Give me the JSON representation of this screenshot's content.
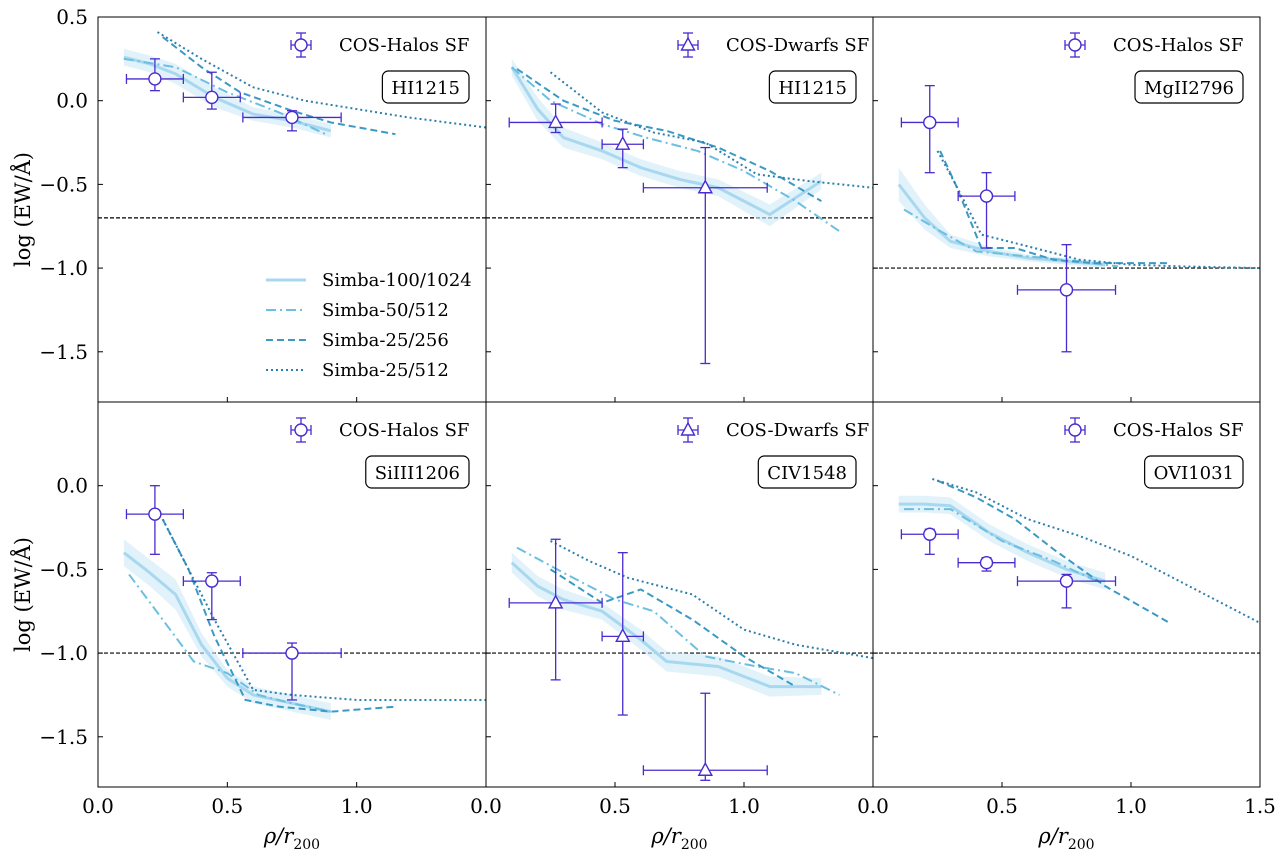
{
  "colors": {
    "simba100": "#a8d8f0",
    "simba50": "#6cbfe0",
    "simba25_256": "#3b9ac4",
    "simba25_512": "#2b7fae",
    "band": "#cfe9f7",
    "obs": "#4a2bd0",
    "threshold": "#000000"
  },
  "chart_data": {
    "type": "line",
    "title": "",
    "xlabel": "ρ/r",
    "xlabel_sub": "200",
    "ylabel": "log (EW/Å)",
    "xlim": [
      0.0,
      1.5
    ],
    "ylim": [
      -1.8,
      0.5
    ],
    "grid": false,
    "yticks": [
      0.5,
      0.0,
      -0.5,
      -1.0,
      -1.5
    ],
    "ytick_labels_top": [
      "0.5",
      "0.0",
      "−0.5",
      "−1.0",
      "−1.5"
    ],
    "ytick_labels_bottom": [
      "0.0",
      "−0.5",
      "−1.0",
      "−1.5"
    ],
    "xticks": [
      0.0,
      0.5,
      1.0
    ],
    "xtick_labels": [
      "0.0",
      "0.5",
      "1.0"
    ],
    "xtick_last_label": "1.5",
    "legend": {
      "location": "lower-right of top-left panel",
      "entries": [
        "Simba-100/1024",
        "Simba-50/512",
        "Simba-25/256",
        "Simba-25/512"
      ]
    },
    "panels": [
      {
        "ion": "HI1215",
        "obs_label": "COS-Halos SF",
        "marker": "circle",
        "threshold": -0.7,
        "series": [
          {
            "name": "Simba-100/1024",
            "x": [
              0.1,
              0.2,
              0.3,
              0.45,
              0.6,
              0.75,
              0.9
            ],
            "y": [
              0.26,
              0.22,
              0.16,
              0.02,
              -0.08,
              -0.12,
              -0.18
            ],
            "band_lo": [
              0.21,
              0.17,
              0.1,
              -0.04,
              -0.12,
              -0.16,
              -0.22
            ],
            "band_hi": [
              0.31,
              0.27,
              0.22,
              0.08,
              -0.04,
              -0.08,
              -0.14
            ]
          },
          {
            "name": "Simba-50/512",
            "x": [
              0.1,
              0.3,
              0.5,
              0.7,
              0.88
            ],
            "y": [
              0.25,
              0.2,
              0.05,
              -0.07,
              -0.2
            ]
          },
          {
            "name": "Simba-25/256",
            "x": [
              0.25,
              0.4,
              0.55,
              0.75,
              0.9,
              1.15
            ],
            "y": [
              0.38,
              0.2,
              0.05,
              -0.06,
              -0.13,
              -0.2
            ]
          },
          {
            "name": "Simba-25/512",
            "x": [
              0.23,
              0.4,
              0.6,
              0.8,
              1.0,
              1.2,
              1.5
            ],
            "y": [
              0.41,
              0.25,
              0.08,
              0.0,
              -0.05,
              -0.1,
              -0.16
            ]
          }
        ],
        "obs": [
          {
            "x": 0.22,
            "xerr": 0.11,
            "y": 0.13,
            "ylo": 0.06,
            "yhi": 0.25
          },
          {
            "x": 0.44,
            "xerr": 0.11,
            "y": 0.02,
            "ylo": -0.05,
            "yhi": 0.17
          },
          {
            "x": 0.75,
            "xerr": 0.19,
            "y": -0.1,
            "ylo": -0.18,
            "yhi": -0.06
          }
        ]
      },
      {
        "ion": "HI1215",
        "obs_label": "COS-Dwarfs SF",
        "marker": "triangle",
        "threshold": -0.7,
        "series": [
          {
            "name": "Simba-100/1024",
            "x": [
              0.1,
              0.2,
              0.3,
              0.45,
              0.6,
              0.75,
              0.9,
              1.1,
              1.3
            ],
            "y": [
              0.2,
              -0.05,
              -0.22,
              -0.3,
              -0.4,
              -0.47,
              -0.52,
              -0.68,
              -0.48
            ],
            "band_lo": [
              0.15,
              -0.12,
              -0.28,
              -0.35,
              -0.45,
              -0.52,
              -0.57,
              -0.75,
              -0.53
            ],
            "band_hi": [
              0.25,
              0.02,
              -0.16,
              -0.25,
              -0.35,
              -0.42,
              -0.47,
              -0.62,
              -0.43
            ]
          },
          {
            "name": "Simba-50/512",
            "x": [
              0.1,
              0.25,
              0.45,
              0.62,
              0.82,
              1.0,
              1.2,
              1.37
            ],
            "y": [
              0.2,
              0.0,
              -0.14,
              -0.22,
              -0.3,
              -0.42,
              -0.6,
              -0.78
            ]
          },
          {
            "name": "Simba-25/256",
            "x": [
              0.12,
              0.3,
              0.5,
              0.7,
              0.9,
              1.1,
              1.3
            ],
            "y": [
              0.19,
              0.0,
              -0.12,
              -0.18,
              -0.28,
              -0.42,
              -0.6
            ]
          },
          {
            "name": "Simba-25/512",
            "x": [
              0.25,
              0.45,
              0.65,
              0.85,
              1.05,
              1.25,
              1.5
            ],
            "y": [
              0.17,
              -0.07,
              -0.19,
              -0.25,
              -0.44,
              -0.48,
              -0.52
            ]
          }
        ],
        "obs": [
          {
            "x": 0.27,
            "xerr": 0.18,
            "y": -0.13,
            "ylo": -0.19,
            "yhi": -0.02
          },
          {
            "x": 0.53,
            "xerr": 0.08,
            "y": -0.26,
            "ylo": -0.4,
            "yhi": -0.17
          },
          {
            "x": 0.85,
            "xerr": 0.24,
            "y": -0.52,
            "ylo": -1.57,
            "yhi": -0.28
          }
        ]
      },
      {
        "ion": "MgII2796",
        "obs_label": "COS-Halos SF",
        "marker": "circle",
        "threshold": -1.0,
        "series": [
          {
            "name": "Simba-100/1024",
            "x": [
              0.1,
              0.2,
              0.3,
              0.45,
              0.6,
              0.75,
              0.9
            ],
            "y": [
              -0.5,
              -0.7,
              -0.84,
              -0.9,
              -0.94,
              -0.96,
              -0.98
            ],
            "band_lo": [
              -0.6,
              -0.77,
              -0.88,
              -0.93,
              -0.96,
              -0.98,
              -1.0
            ],
            "band_hi": [
              -0.4,
              -0.62,
              -0.8,
              -0.87,
              -0.92,
              -0.94,
              -0.96
            ]
          },
          {
            "name": "Simba-50/512",
            "x": [
              0.12,
              0.25,
              0.4,
              0.6,
              0.8,
              0.95
            ],
            "y": [
              -0.65,
              -0.77,
              -0.9,
              -0.93,
              -0.96,
              -0.99
            ]
          },
          {
            "name": "Simba-25/256",
            "x": [
              0.26,
              0.32,
              0.42,
              0.55,
              0.7,
              0.85,
              1.0,
              1.15
            ],
            "y": [
              -0.3,
              -0.5,
              -0.88,
              -0.88,
              -0.95,
              -0.97,
              -0.97,
              -0.97
            ]
          },
          {
            "name": "Simba-25/512",
            "x": [
              0.25,
              0.32,
              0.42,
              0.6,
              0.8,
              1.0,
              1.2,
              1.5
            ],
            "y": [
              -0.3,
              -0.5,
              -0.8,
              -0.87,
              -0.95,
              -0.98,
              -0.99,
              -1.0
            ]
          }
        ],
        "obs": [
          {
            "x": 0.22,
            "xerr": 0.11,
            "y": -0.13,
            "ylo": -0.43,
            "yhi": 0.09
          },
          {
            "x": 0.44,
            "xerr": 0.11,
            "y": -0.57,
            "ylo": -0.88,
            "yhi": -0.43
          },
          {
            "x": 0.75,
            "xerr": 0.19,
            "y": -1.13,
            "ylo": -1.5,
            "yhi": -0.86
          }
        ]
      },
      {
        "ion": "SiIII1206",
        "obs_label": "COS-Halos SF",
        "marker": "circle",
        "threshold": -1.0,
        "series": [
          {
            "name": "Simba-100/1024",
            "x": [
              0.1,
              0.2,
              0.3,
              0.4,
              0.5,
              0.6,
              0.75,
              0.9
            ],
            "y": [
              -0.4,
              -0.52,
              -0.65,
              -0.95,
              -1.15,
              -1.25,
              -1.3,
              -1.35
            ],
            "band_lo": [
              -0.48,
              -0.6,
              -0.74,
              -1.02,
              -1.2,
              -1.3,
              -1.35,
              -1.4
            ],
            "band_hi": [
              -0.32,
              -0.44,
              -0.56,
              -0.88,
              -1.1,
              -1.2,
              -1.25,
              -1.3
            ]
          },
          {
            "name": "Simba-50/512",
            "x": [
              0.12,
              0.25,
              0.37,
              0.5,
              0.62,
              0.75,
              0.9
            ],
            "y": [
              -0.53,
              -0.8,
              -1.05,
              -1.12,
              -1.25,
              -1.3,
              -1.35
            ]
          },
          {
            "name": "Simba-25/256",
            "x": [
              0.25,
              0.35,
              0.45,
              0.57,
              0.7,
              0.9,
              1.15
            ],
            "y": [
              -0.2,
              -0.5,
              -0.9,
              -1.28,
              -1.32,
              -1.35,
              -1.32
            ]
          },
          {
            "name": "Simba-25/512",
            "x": [
              0.25,
              0.35,
              0.45,
              0.6,
              0.75,
              1.0,
              1.5
            ],
            "y": [
              -0.2,
              -0.5,
              -0.8,
              -1.22,
              -1.25,
              -1.28,
              -1.28
            ]
          }
        ],
        "obs": [
          {
            "x": 0.22,
            "xerr": 0.11,
            "y": -0.17,
            "ylo": -0.41,
            "yhi": 0.0
          },
          {
            "x": 0.44,
            "xerr": 0.11,
            "y": -0.57,
            "ylo": -0.8,
            "yhi": -0.52
          },
          {
            "x": 0.75,
            "xerr": 0.19,
            "y": -1.0,
            "ylo": -1.28,
            "yhi": -0.94
          }
        ]
      },
      {
        "ion": "CIV1548",
        "obs_label": "COS-Dwarfs SF",
        "marker": "triangle",
        "threshold": -1.0,
        "series": [
          {
            "name": "Simba-100/1024",
            "x": [
              0.1,
              0.2,
              0.3,
              0.45,
              0.6,
              0.7,
              0.9,
              1.1,
              1.3
            ],
            "y": [
              -0.46,
              -0.6,
              -0.68,
              -0.75,
              -0.92,
              -1.05,
              -1.08,
              -1.2,
              -1.2
            ],
            "band_lo": [
              -0.52,
              -0.66,
              -0.74,
              -0.8,
              -0.98,
              -1.11,
              -1.14,
              -1.26,
              -1.25
            ],
            "band_hi": [
              -0.4,
              -0.54,
              -0.62,
              -0.7,
              -0.86,
              -0.99,
              -1.02,
              -1.14,
              -1.15
            ]
          },
          {
            "name": "Simba-50/512",
            "x": [
              0.12,
              0.3,
              0.5,
              0.65,
              0.85,
              1.05,
              1.2,
              1.37
            ],
            "y": [
              -0.37,
              -0.52,
              -0.68,
              -0.75,
              -1.02,
              -1.08,
              -1.12,
              -1.25
            ]
          },
          {
            "name": "Simba-25/256",
            "x": [
              0.25,
              0.35,
              0.45,
              0.6,
              0.8,
              1.0,
              1.2
            ],
            "y": [
              -0.5,
              -0.6,
              -0.7,
              -0.62,
              -0.8,
              -1.02,
              -1.2
            ]
          },
          {
            "name": "Simba-25/512",
            "x": [
              0.25,
              0.4,
              0.55,
              0.8,
              1.0,
              1.2,
              1.5
            ],
            "y": [
              -0.33,
              -0.45,
              -0.55,
              -0.65,
              -0.86,
              -0.95,
              -1.03
            ]
          }
        ],
        "obs": [
          {
            "x": 0.27,
            "xerr": 0.18,
            "y": -0.7,
            "ylo": -1.16,
            "yhi": -0.32
          },
          {
            "x": 0.53,
            "xerr": 0.08,
            "y": -0.9,
            "ylo": -1.37,
            "yhi": -0.4
          },
          {
            "x": 0.85,
            "xerr": 0.24,
            "y": -1.7,
            "ylo": -1.76,
            "yhi": -1.24
          }
        ]
      },
      {
        "ion": "OVI1031",
        "obs_label": "COS-Halos SF",
        "marker": "circle",
        "threshold": -1.0,
        "series": [
          {
            "name": "Simba-100/1024",
            "x": [
              0.1,
              0.2,
              0.3,
              0.45,
              0.6,
              0.75,
              0.9
            ],
            "y": [
              -0.11,
              -0.11,
              -0.12,
              -0.28,
              -0.4,
              -0.5,
              -0.57
            ],
            "band_lo": [
              -0.16,
              -0.16,
              -0.17,
              -0.33,
              -0.45,
              -0.55,
              -0.62
            ],
            "band_hi": [
              -0.06,
              -0.06,
              -0.07,
              -0.23,
              -0.35,
              -0.45,
              -0.52
            ]
          },
          {
            "name": "Simba-50/512",
            "x": [
              0.12,
              0.3,
              0.5,
              0.7,
              0.88
            ],
            "y": [
              -0.14,
              -0.14,
              -0.33,
              -0.45,
              -0.58
            ]
          },
          {
            "name": "Simba-25/256",
            "x": [
              0.25,
              0.4,
              0.55,
              0.7,
              0.9,
              1.15
            ],
            "y": [
              0.03,
              -0.07,
              -0.2,
              -0.38,
              -0.6,
              -0.82
            ]
          },
          {
            "name": "Simba-25/512",
            "x": [
              0.23,
              0.4,
              0.6,
              0.8,
              1.0,
              1.2,
              1.5
            ],
            "y": [
              0.04,
              -0.04,
              -0.2,
              -0.3,
              -0.42,
              -0.58,
              -0.82
            ]
          }
        ],
        "obs": [
          {
            "x": 0.22,
            "xerr": 0.11,
            "y": -0.29,
            "ylo": -0.41,
            "yhi": -0.26
          },
          {
            "x": 0.44,
            "xerr": 0.11,
            "y": -0.46,
            "ylo": -0.51,
            "yhi": -0.43
          },
          {
            "x": 0.75,
            "xerr": 0.19,
            "y": -0.57,
            "ylo": -0.73,
            "yhi": -0.53
          }
        ]
      }
    ]
  }
}
